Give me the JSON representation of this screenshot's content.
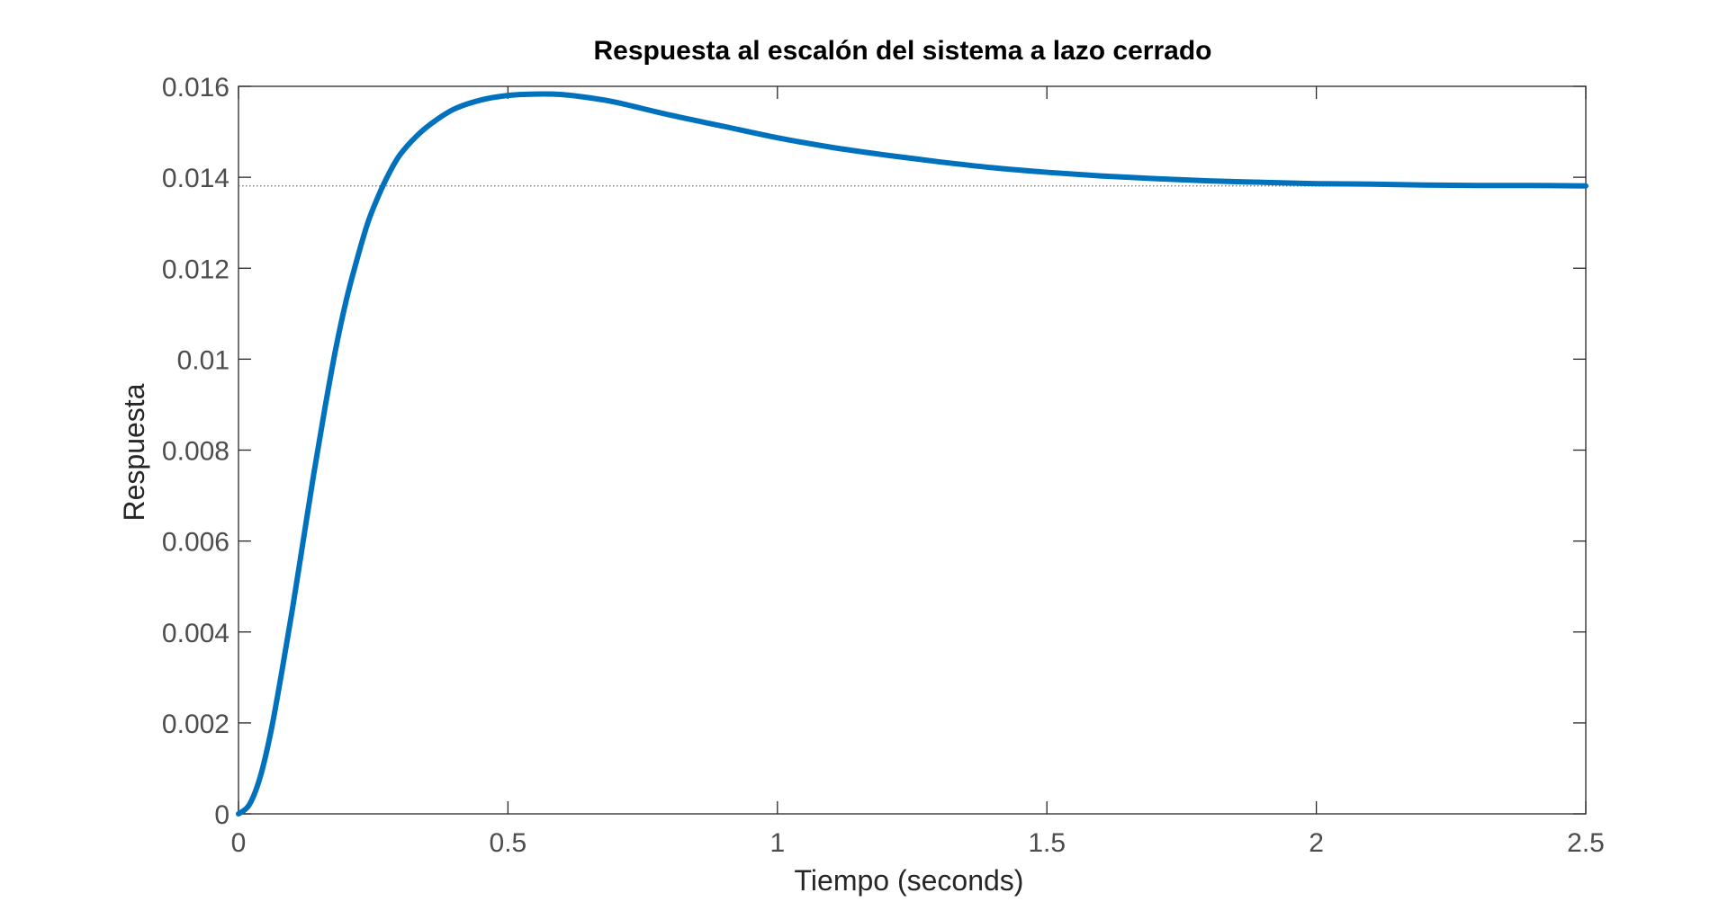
{
  "chart_data": {
    "type": "line",
    "title": "Respuesta al escalón del sistema a lazo cerrado",
    "xlabel": "Tiempo (seconds)",
    "ylabel": "Respuesta",
    "xlim": [
      0,
      2.5
    ],
    "ylim": [
      0,
      0.016
    ],
    "xticks": [
      0,
      0.5,
      1,
      1.5,
      2,
      2.5
    ],
    "xtick_labels": [
      "0",
      "0.5",
      "1",
      "1.5",
      "2",
      "2.5"
    ],
    "yticks": [
      0,
      0.002,
      0.004,
      0.006,
      0.008,
      0.01,
      0.012,
      0.014,
      0.016
    ],
    "ytick_labels": [
      "0",
      "0.002",
      "0.004",
      "0.006",
      "0.008",
      "0.01",
      "0.012",
      "0.014",
      "0.016"
    ],
    "grid": false,
    "steady_state": 0.01381,
    "series": [
      {
        "color": "#0072bd",
        "x": [
          0,
          0.02,
          0.04,
          0.06,
          0.08,
          0.1,
          0.12,
          0.14,
          0.16,
          0.18,
          0.2,
          0.22,
          0.24,
          0.26,
          0.28,
          0.3,
          0.33,
          0.36,
          0.4,
          0.45,
          0.5,
          0.55,
          0.6,
          0.65,
          0.7,
          0.8,
          0.9,
          1.0,
          1.1,
          1.2,
          1.3,
          1.4,
          1.5,
          1.6,
          1.7,
          1.8,
          1.9,
          2.0,
          2.1,
          2.2,
          2.3,
          2.4,
          2.5
        ],
        "y": [
          0,
          0.0002,
          0.0008,
          0.0018,
          0.0031,
          0.0045,
          0.006,
          0.0075,
          0.0089,
          0.0102,
          0.0113,
          0.0122,
          0.013,
          0.0136,
          0.0141,
          0.0145,
          0.0149,
          0.0152,
          0.0155,
          0.0157,
          0.0158,
          0.01583,
          0.01582,
          0.01575,
          0.01565,
          0.01537,
          0.01512,
          0.01487,
          0.01466,
          0.01449,
          0.01434,
          0.01421,
          0.01411,
          0.01403,
          0.01397,
          0.01392,
          0.01389,
          0.01386,
          0.01385,
          0.01383,
          0.01382,
          0.01382,
          0.01381
        ]
      }
    ]
  }
}
